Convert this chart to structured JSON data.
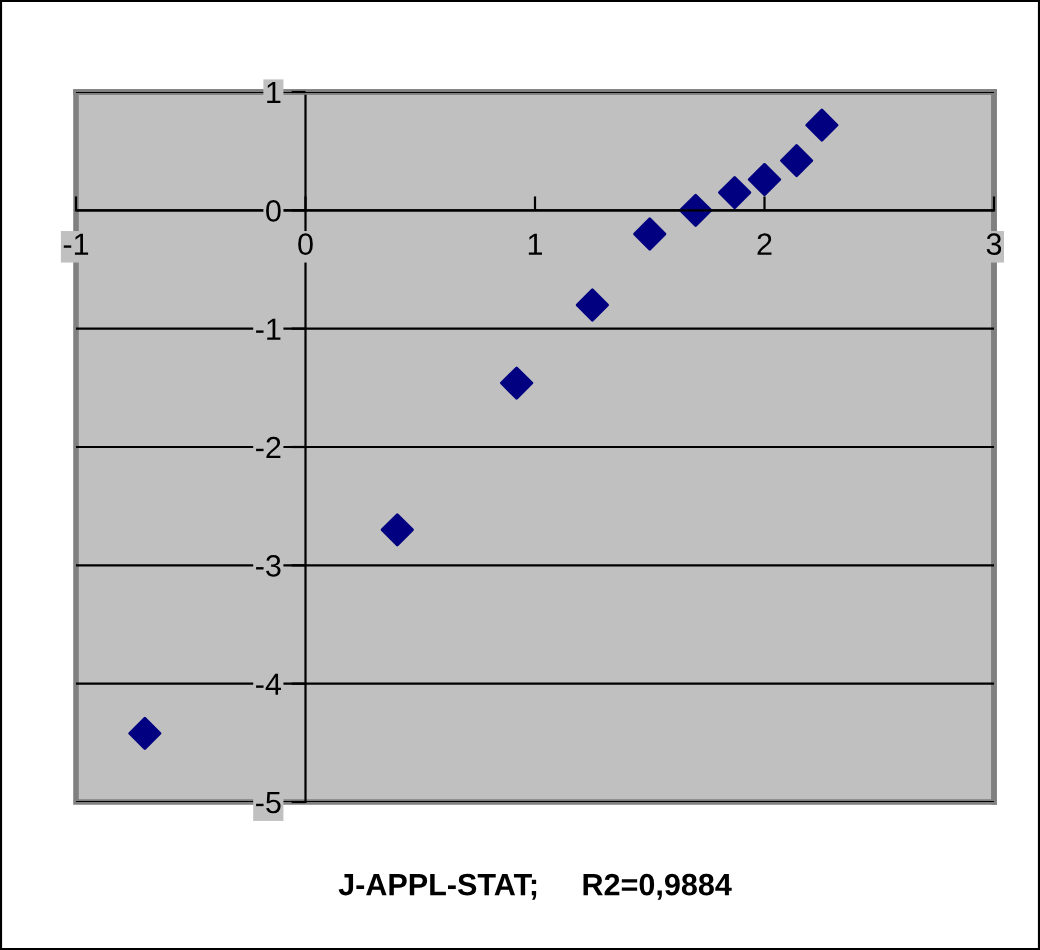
{
  "chart_data": {
    "type": "scatter",
    "xlabel": "J-APPL-STAT;     R2=0,9884",
    "x": [
      -0.7,
      0.4,
      0.92,
      1.25,
      1.5,
      1.7,
      1.87,
      2.0,
      2.14,
      2.25
    ],
    "series": [
      {
        "color": "#000080",
        "values": [
          -4.42,
          -2.7,
          -1.46,
          -0.8,
          -0.2,
          0.0,
          0.15,
          0.26,
          0.42,
          0.72
        ]
      }
    ],
    "xlim": [
      -1,
      3
    ],
    "xticks": [
      -1,
      0,
      1,
      2,
      3
    ],
    "ylim": [
      -5,
      1
    ],
    "yticks": [
      -5,
      -4,
      -3,
      -2,
      -1,
      0,
      1
    ],
    "grid": "y",
    "marker": "diamond",
    "legend": false
  }
}
